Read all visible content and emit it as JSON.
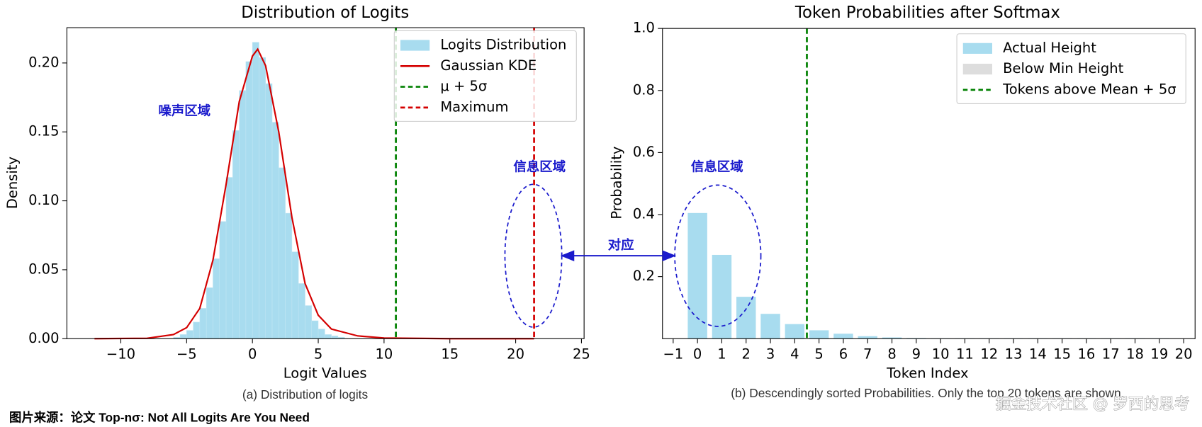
{
  "chart_data": [
    {
      "type": "histogram",
      "title": "Distribution of Logits",
      "xlabel": "Logit Values",
      "ylabel": "Density",
      "caption": "(a) Distribution of logits",
      "bins": [
        -6,
        -5.5,
        -5,
        -4.5,
        -4,
        -3.5,
        -3,
        -2.5,
        -2,
        -1.5,
        -1,
        -0.5,
        0,
        0.5,
        1,
        1.5,
        2,
        2.5,
        3,
        3.5,
        4,
        4.5,
        5,
        5.5,
        6,
        6.5,
        7
      ],
      "counts": [
        0.001,
        0.003,
        0.006,
        0.012,
        0.022,
        0.037,
        0.058,
        0.085,
        0.117,
        0.151,
        0.18,
        0.201,
        0.215,
        0.204,
        0.185,
        0.157,
        0.124,
        0.091,
        0.063,
        0.04,
        0.024,
        0.013,
        0.007,
        0.003,
        0.002,
        0.001
      ],
      "hist_name": "Logits Distribution",
      "hist_color": "#a8dcef",
      "line": {
        "name": "Gaussian KDE",
        "color": "#d40000",
        "x": [
          -12,
          -8,
          -6,
          -5,
          -4,
          -3,
          -2,
          -1,
          0,
          0.4,
          1,
          2,
          3,
          4,
          5,
          6,
          8,
          10,
          15,
          21.4
        ],
        "y": [
          0,
          0.0003,
          0.003,
          0.008,
          0.022,
          0.057,
          0.112,
          0.172,
          0.205,
          0.21,
          0.198,
          0.15,
          0.088,
          0.04,
          0.017,
          0.007,
          0.002,
          0.0005,
          0,
          0
        ]
      },
      "vlines": [
        {
          "name": "μ + 5σ",
          "x": 10.9,
          "color": "#008000"
        },
        {
          "name": "Maximum",
          "x": 21.4,
          "color": "#d40000"
        }
      ],
      "xlim": [
        -14.1,
        25.2
      ],
      "ylim": [
        0,
        0.2256
      ],
      "xticks": [
        {
          "value": -10,
          "label": "−10"
        },
        {
          "value": -5,
          "label": "−5"
        },
        0,
        5,
        10,
        15,
        20,
        25
      ],
      "yticks": [
        {
          "value": 0,
          "label": "0.00"
        },
        {
          "value": 0.05,
          "label": "0.05"
        },
        {
          "value": 0.1,
          "label": "0.10"
        },
        {
          "value": 0.15,
          "label": "0.15"
        },
        {
          "value": 0.2,
          "label": "0.20"
        }
      ],
      "annotations": [
        "噪声区域",
        "信息区域"
      ]
    },
    {
      "type": "bar",
      "title": "Token Probabilities after Softmax",
      "xlabel": "Token Index",
      "ylabel": "Probability",
      "caption": "(b) Descendingly sorted Probabilities. Only the top 20 tokens are shown.",
      "x": [
        0,
        1,
        2,
        3,
        4,
        5,
        6,
        7,
        8,
        9,
        10,
        11,
        12,
        13,
        14,
        15,
        16,
        17,
        18,
        19
      ],
      "series": [
        {
          "name": "Actual Height",
          "color": "#a8dcef",
          "values": [
            0.405,
            0.27,
            0.135,
            0.08,
            0.047,
            0.027,
            0.016,
            0.008,
            0.004,
            0.002,
            0.001,
            0.001,
            0.001,
            0.001,
            0.001,
            0.001,
            0.001,
            0.001,
            0.001,
            0.001
          ]
        },
        {
          "name": "Below Min Height",
          "color": "#dddddd"
        }
      ],
      "vlines": [
        {
          "name": "Tokens above Mean + 5σ",
          "x": 4.5,
          "color": "#008000"
        }
      ],
      "xlim": [
        -1.44,
        20.47
      ],
      "ylim": [
        0,
        1
      ],
      "xticks": [
        {
          "value": -1,
          "label": "−1"
        },
        0,
        1,
        2,
        3,
        4,
        5,
        6,
        7,
        8,
        9,
        10,
        11,
        12,
        13,
        14,
        15,
        16,
        17,
        18,
        19,
        20
      ],
      "yticks": [
        0.2,
        0.4,
        0.6,
        0.8,
        {
          "value": 1,
          "label": "1.0"
        }
      ],
      "annotations": [
        "信息区域"
      ]
    }
  ],
  "link_label": "对应",
  "source": "图片来源：论文 Top-nσ: Not All Logits Are You Need",
  "watermark": "掘金技术社区 @ 罗西的思考"
}
